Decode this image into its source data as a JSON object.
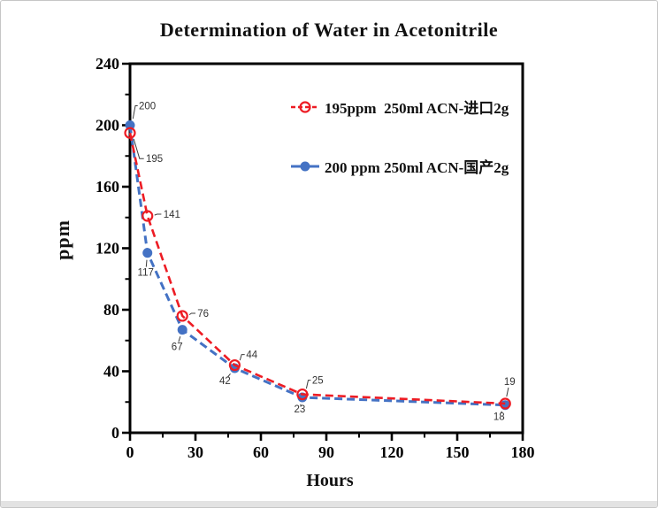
{
  "page": {
    "background": "#ffffff",
    "border_color": "#c6c6c6",
    "bottom_strip_color": "#e3e3e3"
  },
  "chart_data": {
    "type": "line",
    "title": "Determination of Water in Acetonitrile",
    "xlabel": "Hours",
    "ylabel": "ppm",
    "xlim": [
      0,
      180
    ],
    "ylim": [
      0,
      240
    ],
    "x_ticks": [
      0,
      30,
      60,
      90,
      120,
      150,
      180
    ],
    "y_ticks": [
      0,
      40,
      80,
      120,
      160,
      200,
      240
    ],
    "x_minor_step": 15,
    "y_minor_step": 20,
    "grid": false,
    "legend_position": "top-right-inside",
    "axis_color": "#000000",
    "point_label_color": "#333333",
    "series": [
      {
        "name": "195ppm  250ml ACN-进口2g",
        "color": "#ed1c24",
        "marker": "open-circle",
        "line_style": "dashed",
        "legend_dash": "5 3",
        "x": [
          0,
          8,
          24,
          48,
          79,
          172
        ],
        "values": [
          195,
          141,
          76,
          44,
          25,
          19
        ],
        "point_labels": [
          "195",
          "141",
          "76",
          "44",
          "25",
          "19"
        ],
        "label_offsets": [
          [
            18,
            29,
            "start"
          ],
          [
            18,
            -2,
            "start"
          ],
          [
            17,
            -3,
            "start"
          ],
          [
            13,
            -12,
            "start"
          ],
          [
            11,
            -16,
            "start"
          ],
          [
            5,
            -25,
            "middle"
          ]
        ]
      },
      {
        "name": "200 ppm 250ml ACN-国产2g",
        "color": "#4472c4",
        "marker": "filled-circle",
        "line_style": "dashed",
        "legend_dash": "",
        "x": [
          0,
          8,
          24,
          48,
          79,
          172
        ],
        "values": [
          200,
          117,
          67,
          42,
          23,
          18
        ],
        "point_labels": [
          "200",
          "117",
          "67",
          "42",
          "23",
          "18"
        ],
        "label_offsets": [
          [
            10,
            -22,
            "start"
          ],
          [
            -2,
            22,
            "middle"
          ],
          [
            -6,
            19,
            "middle"
          ],
          [
            -11,
            14,
            "middle"
          ],
          [
            -3,
            13,
            "middle"
          ],
          [
            -7,
            13,
            "middle"
          ]
        ]
      }
    ]
  }
}
